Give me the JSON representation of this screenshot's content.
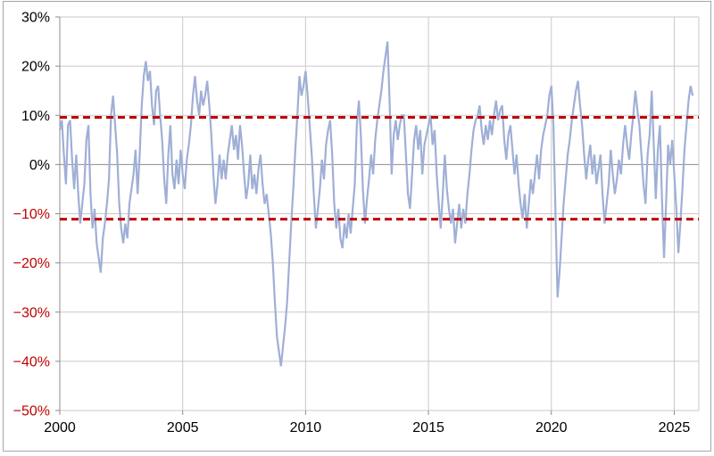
{
  "chart_data": {
    "type": "line",
    "title": "",
    "xlabel": "",
    "ylabel": "",
    "x_range": [
      2000,
      2026
    ],
    "y_range": [
      -50,
      30
    ],
    "grid": true,
    "legend": "none",
    "x_ticks": [
      {
        "v": 2000,
        "label": "2000"
      },
      {
        "v": 2005,
        "label": "2005"
      },
      {
        "v": 2010,
        "label": "2010"
      },
      {
        "v": 2015,
        "label": "2015"
      },
      {
        "v": 2020,
        "label": "2020"
      },
      {
        "v": 2025,
        "label": "2025"
      }
    ],
    "y_ticks": [
      {
        "v": 30,
        "label": "30%"
      },
      {
        "v": 20,
        "label": "20%"
      },
      {
        "v": 10,
        "label": "10%"
      },
      {
        "v": 0,
        "label": "0%"
      },
      {
        "v": -10,
        "label": "−10%"
      },
      {
        "v": -20,
        "label": "−20%"
      },
      {
        "v": -30,
        "label": "−30%"
      },
      {
        "v": -40,
        "label": "−40%"
      },
      {
        "v": -50,
        "label": "−50%"
      }
    ],
    "reference_lines": [
      {
        "name": "upper-band",
        "value": 9.6,
        "style": "dashed"
      },
      {
        "name": "lower-band",
        "value": -11.1,
        "style": "dashed"
      }
    ],
    "series": [
      {
        "name": "monthly-yoy-change-pct",
        "start_year": 2000,
        "points_per_year": 12,
        "values": [
          7,
          9,
          2,
          -4,
          8,
          9,
          1,
          -5,
          2,
          -6,
          -12,
          -8,
          -4,
          5,
          8,
          -6,
          -13,
          -9,
          -16,
          -19,
          -22,
          -15,
          -12,
          -8,
          -3,
          10,
          14,
          8,
          2,
          -8,
          -13,
          -16,
          -12,
          -15,
          -8,
          -5,
          -2,
          3,
          -6,
          2,
          12,
          18,
          21,
          17,
          19,
          12,
          8,
          15,
          16,
          10,
          5,
          -3,
          -8,
          2,
          8,
          -2,
          -5,
          1,
          -4,
          3,
          -2,
          -5,
          1,
          4,
          8,
          14,
          18,
          13,
          10,
          15,
          12,
          14,
          17,
          12,
          6,
          -2,
          -8,
          -4,
          2,
          -3,
          1,
          -3,
          2,
          5,
          8,
          3,
          6,
          1,
          8,
          4,
          -2,
          -7,
          -4,
          2,
          -5,
          -2,
          -6,
          -1,
          2,
          -4,
          -8,
          -6,
          -10,
          -14,
          -20,
          -28,
          -35,
          -38,
          -41,
          -37,
          -33,
          -28,
          -20,
          -12,
          -5,
          3,
          10,
          18,
          14,
          16,
          19,
          14,
          8,
          2,
          -6,
          -13,
          -9,
          -5,
          1,
          -3,
          4,
          7,
          9,
          2,
          -8,
          -13,
          -9,
          -15,
          -17,
          -12,
          -15,
          -10,
          -14,
          -9,
          -4,
          8,
          13,
          6,
          -5,
          -12,
          -7,
          -3,
          2,
          -2,
          5,
          9,
          12,
          15,
          19,
          22,
          25,
          13,
          -2,
          6,
          9,
          5,
          8,
          10,
          10,
          2,
          -6,
          -9,
          -2,
          5,
          8,
          3,
          7,
          -2,
          4,
          6,
          8,
          10,
          4,
          7,
          -2,
          -8,
          -13,
          -6,
          2,
          -5,
          -9,
          -12,
          -9,
          -16,
          -12,
          -8,
          -13,
          -9,
          -12,
          -6,
          -2,
          3,
          7,
          9,
          10,
          12,
          7,
          4,
          8,
          5,
          9,
          6,
          10,
          13,
          9,
          11,
          12,
          5,
          1,
          6,
          8,
          3,
          -2,
          2,
          -4,
          -8,
          -11,
          -6,
          -13,
          -8,
          -3,
          -6,
          -2,
          2,
          -3,
          3,
          6,
          8,
          10,
          14,
          16,
          8,
          -10,
          -27,
          -22,
          -15,
          -8,
          -3,
          2,
          5,
          9,
          12,
          15,
          17,
          12,
          8,
          2,
          -3,
          1,
          4,
          -2,
          2,
          -4,
          -1,
          2,
          -6,
          -12,
          -8,
          -4,
          3,
          -2,
          -6,
          -3,
          1,
          -2,
          4,
          8,
          4,
          1,
          6,
          10,
          15,
          11,
          8,
          2,
          -4,
          -8,
          2,
          6,
          15,
          4,
          -7,
          3,
          8,
          -7,
          -19,
          -8,
          4,
          0,
          5,
          -2,
          -9,
          -18,
          -12,
          -5,
          3,
          8,
          13,
          16,
          14
        ]
      }
    ],
    "colors": {
      "line": "#9FAFD6",
      "reference": "#C00000",
      "grid": "#C9C9C9",
      "axis": "#8C8C8C",
      "tick_label_positive": "#000000",
      "tick_label_negative": "#C00000",
      "background": "#FFFFFF",
      "frame_border": "#A6A6A6"
    }
  }
}
